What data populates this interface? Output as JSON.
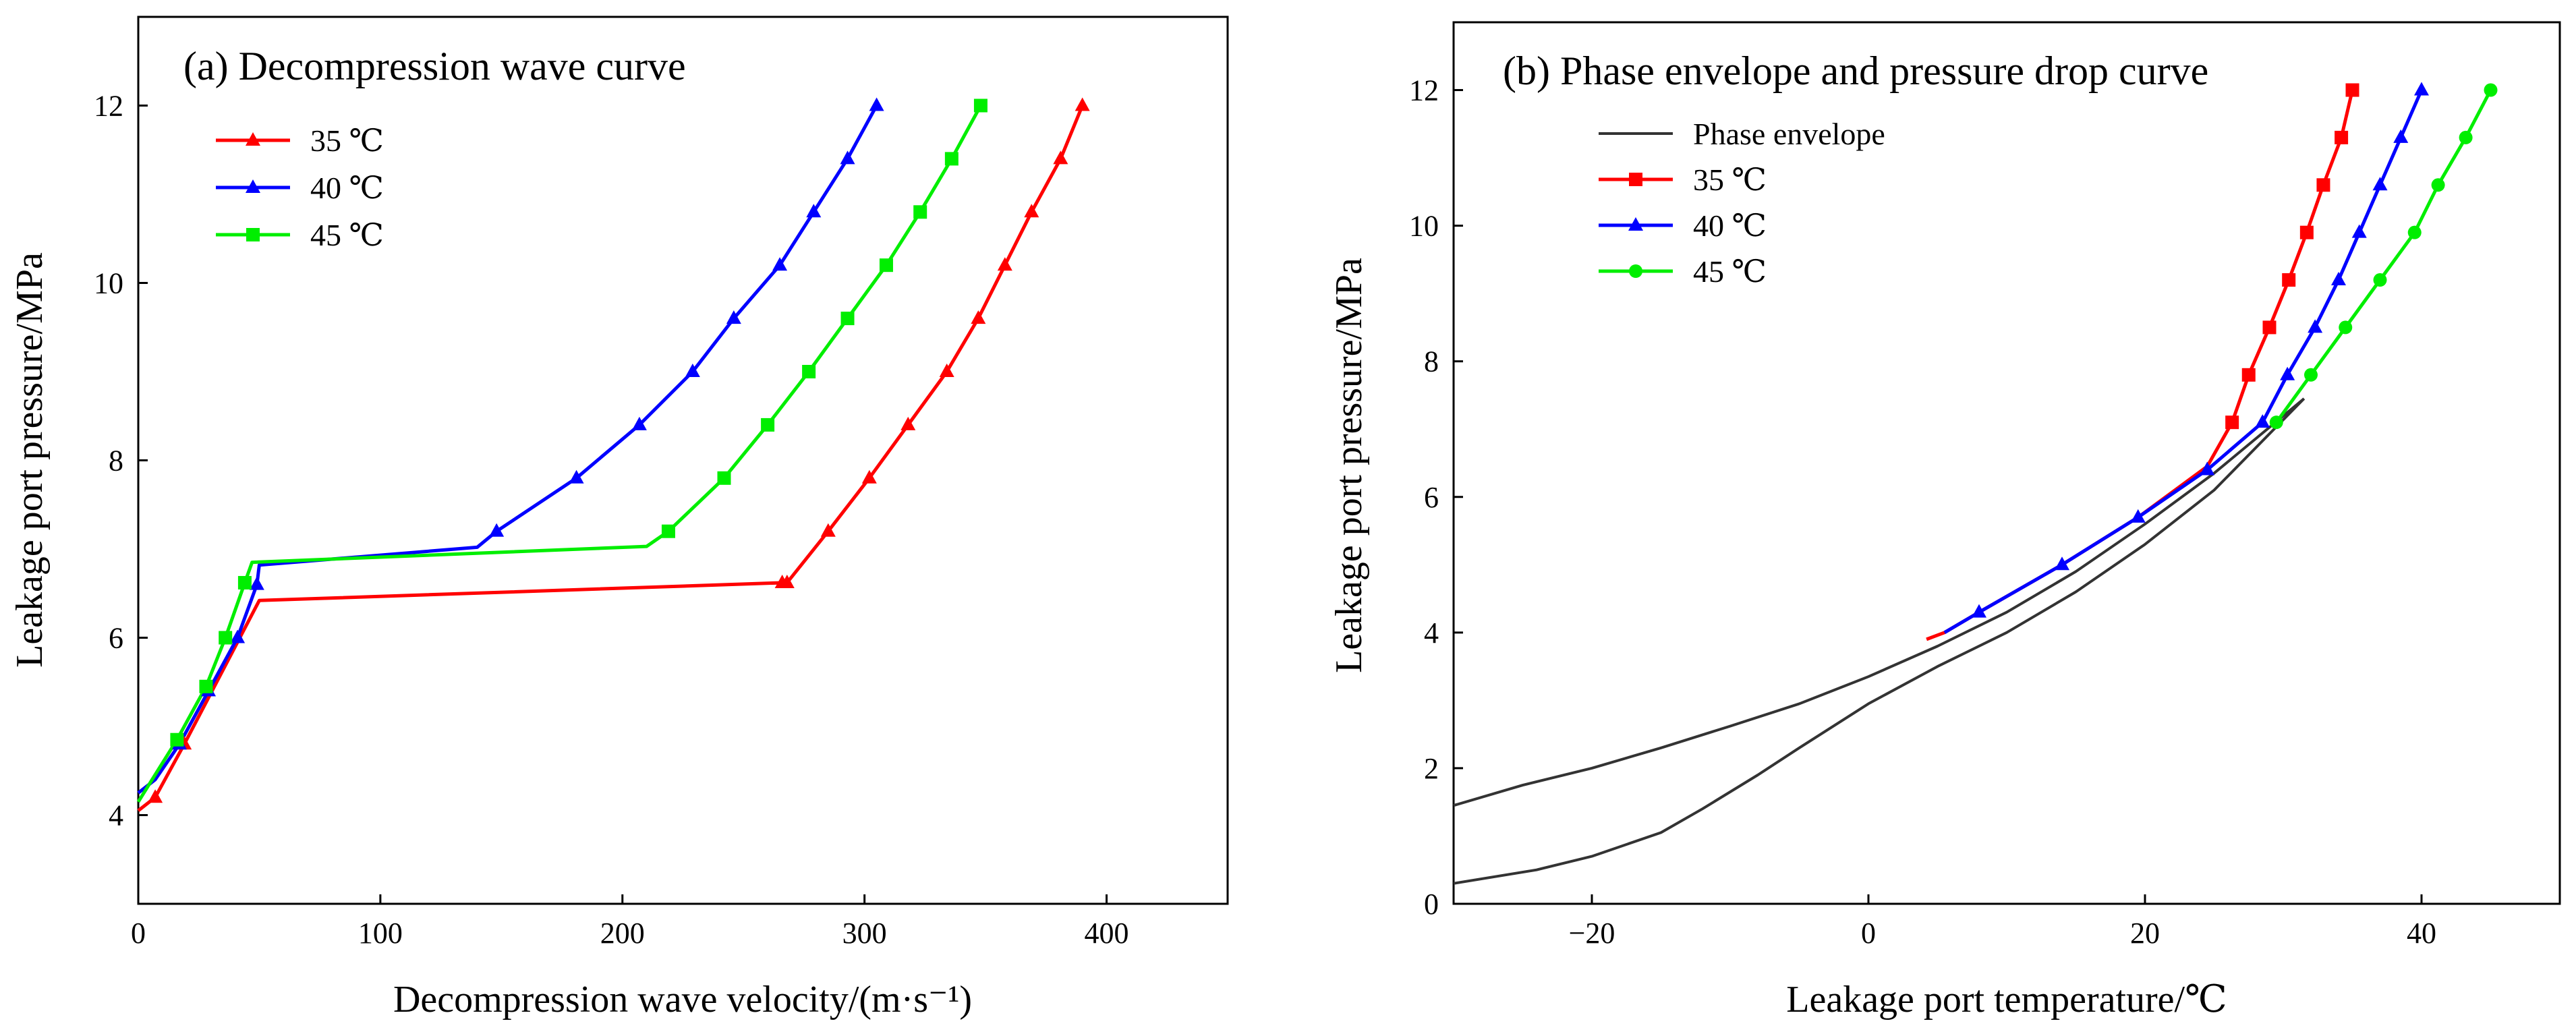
{
  "chart_data": [
    {
      "type": "line",
      "title": "(a) Decompression wave curve",
      "xlabel": "Decompression wave velocity/(m·s⁻¹)",
      "ylabel": "Leakage port pressure/MPa",
      "xlim": [
        0,
        450
      ],
      "ylim": [
        3,
        13
      ],
      "xticks": [
        0,
        100,
        200,
        300,
        400
      ],
      "yticks": [
        4,
        6,
        8,
        10,
        12
      ],
      "grid": false,
      "legend_position": "top-left",
      "series": [
        {
          "name": "35 ℃",
          "color": "#ff0000",
          "marker": "triangle",
          "x": [
            0,
            7,
            18,
            19,
            50,
            266,
            268,
            285,
            302,
            318,
            334,
            347,
            358,
            369,
            381,
            390
          ],
          "y": [
            4.05,
            4.2,
            4.75,
            4.8,
            6.42,
            6.62,
            6.62,
            7.2,
            7.8,
            8.4,
            9.0,
            9.6,
            10.2,
            10.8,
            11.4,
            12.0
          ],
          "markers_at": [
            1,
            3,
            5,
            6,
            7,
            8,
            9,
            10,
            11,
            12,
            13,
            14,
            15
          ]
        },
        {
          "name": "40 ℃",
          "color": "#0000ff",
          "marker": "triangle",
          "x": [
            0,
            7,
            17,
            29,
            41,
            49,
            50,
            140,
            148,
            181,
            207,
            229,
            246,
            265,
            279,
            293,
            305
          ],
          "y": [
            4.25,
            4.4,
            4.8,
            5.4,
            6.0,
            6.6,
            6.82,
            7.02,
            7.2,
            7.8,
            8.4,
            9.0,
            9.6,
            10.2,
            10.8,
            11.4,
            12.0
          ],
          "markers_at": [
            2,
            3,
            4,
            5,
            8,
            9,
            10,
            11,
            12,
            13,
            14,
            15,
            16
          ]
        },
        {
          "name": "45 ℃",
          "color": "#00ee00",
          "marker": "square",
          "x": [
            0,
            16,
            28,
            36,
            44,
            47,
            210,
            219,
            242,
            260,
            277,
            293,
            309,
            323,
            336,
            348
          ],
          "y": [
            4.15,
            4.85,
            5.45,
            6.0,
            6.62,
            6.85,
            7.03,
            7.2,
            7.8,
            8.4,
            9.0,
            9.6,
            10.2,
            10.8,
            11.4,
            12.0
          ],
          "markers_at": [
            1,
            2,
            3,
            4,
            7,
            8,
            9,
            10,
            11,
            12,
            13,
            14,
            15
          ]
        }
      ]
    },
    {
      "type": "line",
      "title": "(b) Phase envelope and pressure drop curve",
      "xlabel": "Leakage port temperature/℃",
      "ylabel": "Leakage port pressure/MPa",
      "xlim": [
        -30,
        50
      ],
      "ylim": [
        0,
        13
      ],
      "xticks": [
        -20,
        0,
        20,
        40
      ],
      "yticks": [
        0,
        2,
        4,
        6,
        8,
        10,
        12
      ],
      "grid": false,
      "legend_position": "top-left",
      "series": [
        {
          "name": "Phase envelope",
          "color": "#333333",
          "marker": "none",
          "x": [
            -30,
            -25,
            -20,
            -15,
            -10,
            -5,
            0,
            5,
            10,
            15,
            20,
            25,
            31.5
          ],
          "y": [
            1.45,
            1.75,
            2.0,
            2.3,
            2.62,
            2.95,
            3.35,
            3.8,
            4.3,
            4.9,
            5.6,
            6.35,
            7.45
          ]
        },
        {
          "name": "",
          "color": "#333333",
          "marker": "none",
          "x": [
            -30,
            -24,
            -20,
            -15,
            -12,
            -8,
            -5,
            0,
            5,
            10,
            15,
            20,
            25,
            31.5
          ],
          "y": [
            0.3,
            0.5,
            0.7,
            1.05,
            1.4,
            1.9,
            2.3,
            2.95,
            3.5,
            4.0,
            4.6,
            5.3,
            6.1,
            7.45
          ]
        },
        {
          "name": "35 ℃",
          "color": "#ff0000",
          "marker": "square",
          "x": [
            4.2,
            5.5,
            8,
            14,
            19.5,
            24.5,
            26.3,
            27.5,
            29,
            30.4,
            31.7,
            32.9,
            34.2,
            35
          ],
          "y": [
            3.9,
            4.0,
            4.3,
            5.0,
            5.7,
            6.45,
            7.1,
            7.8,
            8.5,
            9.2,
            9.9,
            10.6,
            11.3,
            12.0
          ],
          "markers_at": [
            6,
            7,
            8,
            9,
            10,
            11,
            12,
            13
          ]
        },
        {
          "name": "40 ℃",
          "color": "#0000ff",
          "marker": "triangle",
          "x": [
            5.5,
            8,
            14,
            19.5,
            24.5,
            28.5,
            30.3,
            32.3,
            34,
            35.5,
            37,
            38.5,
            40
          ],
          "y": [
            4.0,
            4.3,
            5.0,
            5.7,
            6.4,
            7.1,
            7.8,
            8.5,
            9.2,
            9.9,
            10.6,
            11.3,
            12.0
          ],
          "markers_at": [
            1,
            2,
            3,
            4,
            5,
            6,
            7,
            8,
            9,
            10,
            11,
            12
          ]
        },
        {
          "name": "45 ℃",
          "color": "#00ee00",
          "marker": "circle",
          "x": [
            29.5,
            32,
            34.5,
            37,
            39.5,
            41.2,
            43.2,
            45
          ],
          "y": [
            7.1,
            7.8,
            8.5,
            9.2,
            9.9,
            10.6,
            11.3,
            12.0
          ],
          "markers_at": [
            0,
            1,
            2,
            3,
            4,
            5,
            6,
            7
          ]
        }
      ]
    }
  ]
}
